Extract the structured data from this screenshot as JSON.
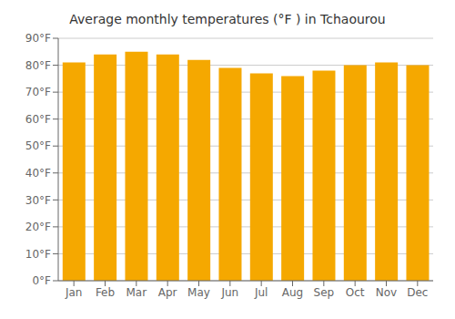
{
  "chart_data": {
    "type": "bar",
    "title": "Average monthly temperatures (°F ) in Tchaourou",
    "categories": [
      "Jan",
      "Feb",
      "Mar",
      "Apr",
      "May",
      "Jun",
      "Jul",
      "Aug",
      "Sep",
      "Oct",
      "Nov",
      "Dec"
    ],
    "values": [
      81,
      84,
      85,
      84,
      82,
      79,
      77,
      76,
      78,
      80,
      81,
      80
    ],
    "color": "#F5A800",
    "ylim": [
      0,
      90
    ],
    "yticks": [
      {
        "value": 0,
        "label": "0°F"
      },
      {
        "value": 10,
        "label": "10°F"
      },
      {
        "value": 20,
        "label": "20°F"
      },
      {
        "value": 30,
        "label": "30°F"
      },
      {
        "value": 40,
        "label": "40°F"
      },
      {
        "value": 50,
        "label": "50°F"
      },
      {
        "value": 60,
        "label": "60°F"
      },
      {
        "value": 70,
        "label": "70°F"
      },
      {
        "value": 80,
        "label": "80°F"
      },
      {
        "value": 90,
        "label": "90°F"
      }
    ],
    "grid": true
  }
}
